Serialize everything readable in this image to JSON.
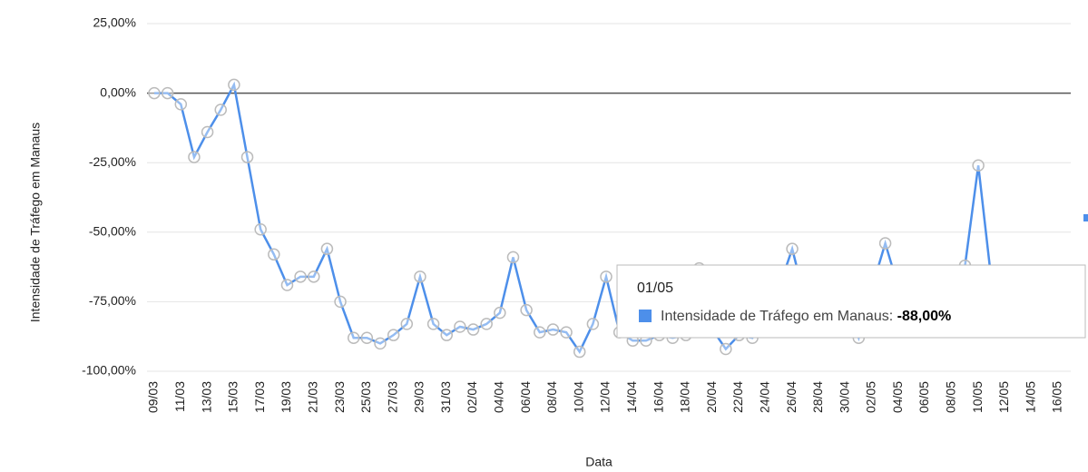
{
  "chart_data": {
    "type": "line",
    "y_axis_label": "Intensidade de Tráfego em Manaus",
    "x_axis_label": "Data",
    "categories": [
      "09/03",
      null,
      "11/03",
      null,
      "13/03",
      null,
      "15/03",
      null,
      "17/03",
      null,
      "19/03",
      null,
      "21/03",
      null,
      "23/03",
      null,
      "25/03",
      null,
      "27/03",
      null,
      "29/03",
      null,
      "31/03",
      null,
      "02/04",
      null,
      "04/04",
      null,
      "06/04",
      null,
      "08/04",
      null,
      "10/04",
      null,
      "12/04",
      null,
      "14/04",
      null,
      "16/04",
      null,
      "18/04",
      null,
      "20/04",
      null,
      "22/04",
      null,
      "24/04",
      null,
      "26/04",
      null,
      "28/04",
      null,
      "30/04",
      null,
      "02/05",
      null,
      "04/05",
      null,
      "06/05",
      null,
      "08/05",
      null,
      "10/05",
      null,
      "12/05",
      null,
      "14/05",
      null,
      "16/05"
    ],
    "series": [
      {
        "name": "Intensidade de Tráfego em Manaus",
        "color": "#4d8fea",
        "values": [
          0,
          0,
          -4,
          -23,
          -14,
          -6,
          3,
          -23,
          -49,
          -58,
          -69,
          -66,
          -66,
          -56,
          -75,
          -88,
          -88,
          -90,
          -87,
          -83,
          -66,
          -83,
          -87,
          -84,
          -85,
          -83,
          -79,
          -59,
          -78,
          -86,
          -85,
          -86,
          -93,
          -83,
          -66,
          -86,
          -89,
          -89,
          -87,
          -88,
          -87,
          -63,
          -85,
          -92,
          -87,
          -88,
          -72,
          -70,
          -56,
          -75,
          -72,
          -74,
          -76,
          -88,
          -70,
          -54,
          -70,
          -72,
          -70,
          -70,
          -68,
          -62,
          -26,
          -68,
          null,
          null,
          null,
          null,
          null
        ]
      }
    ],
    "ylim": [
      -100,
      25
    ],
    "yticks": [
      {
        "value": -100,
        "label": "-100,00%"
      },
      {
        "value": -75,
        "label": "-75,00%"
      },
      {
        "value": -50,
        "label": "-50,00%"
      },
      {
        "value": -25,
        "label": "-25,00%"
      },
      {
        "value": 0,
        "label": "0,00%"
      },
      {
        "value": 25,
        "label": "25,00%"
      }
    ],
    "grid": true,
    "tooltip": {
      "title": "01/05",
      "label": "Intensidade de Tráfego em Manaus:",
      "value": "-88,00%"
    }
  }
}
